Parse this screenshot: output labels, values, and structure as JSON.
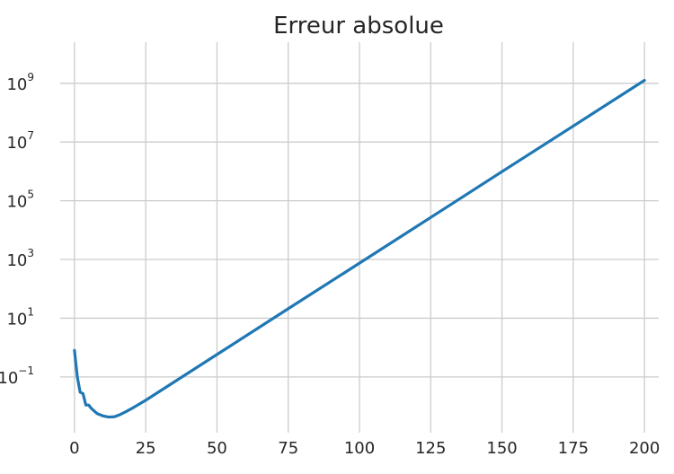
{
  "chart_data": {
    "type": "line",
    "title": "Erreur absolue",
    "xlabel": "",
    "ylabel": "",
    "xlim": [
      -5,
      205
    ],
    "ylim_log10": [
      -2.9,
      10.4
    ],
    "yscale": "log",
    "grid": true,
    "x_ticks": [
      {
        "value": 0,
        "label": "0"
      },
      {
        "value": 25,
        "label": "25"
      },
      {
        "value": 50,
        "label": "50"
      },
      {
        "value": 75,
        "label": "75"
      },
      {
        "value": 100,
        "label": "100"
      },
      {
        "value": 125,
        "label": "125"
      },
      {
        "value": 150,
        "label": "150"
      },
      {
        "value": 175,
        "label": "175"
      },
      {
        "value": 200,
        "label": "200"
      }
    ],
    "y_ticks": [
      {
        "exp": -1,
        "base": "10",
        "sup": "−1"
      },
      {
        "exp": 1,
        "base": "10",
        "sup": "1"
      },
      {
        "exp": 3,
        "base": "10",
        "sup": "3"
      },
      {
        "exp": 5,
        "base": "10",
        "sup": "5"
      },
      {
        "exp": 7,
        "base": "10",
        "sup": "7"
      },
      {
        "exp": 9,
        "base": "10",
        "sup": "9"
      }
    ],
    "series": [
      {
        "color": "#1f77b4",
        "x": [
          0,
          1,
          2,
          3,
          4,
          5,
          6,
          8,
          10,
          12,
          14,
          16,
          18,
          20,
          25,
          50,
          75,
          100,
          125,
          150,
          175,
          200
        ],
        "y": [
          0.8,
          0.1,
          0.03,
          0.027,
          0.011,
          0.011,
          0.0083,
          0.0056,
          0.0047,
          0.0043,
          0.0044,
          0.0052,
          0.0065,
          0.0083,
          0.016,
          0.58,
          21,
          750,
          27000,
          980000,
          35000000,
          1260000000
        ]
      }
    ]
  }
}
